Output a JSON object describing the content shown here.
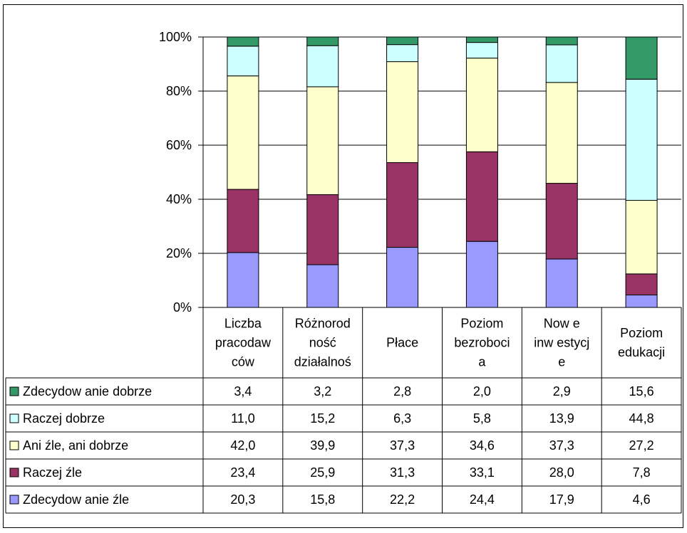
{
  "chart_data": {
    "type": "bar",
    "stacked": true,
    "percent_stacked": true,
    "categories": [
      [
        "Liczba",
        "pracodaw",
        "ców"
      ],
      [
        "Różnorod",
        "ność",
        "działalnoś"
      ],
      [
        "Płace"
      ],
      [
        "Poziom",
        "bezroboci",
        "a"
      ],
      [
        "Now e",
        "inw estycj",
        "e"
      ],
      [
        "Poziom",
        "edukacji"
      ]
    ],
    "series": [
      {
        "name": "Zdecydow anie źle",
        "color": "#9999FF",
        "values": [
          20.3,
          15.8,
          22.2,
          24.4,
          17.9,
          4.6
        ],
        "labels": [
          "20,3",
          "15,8",
          "22,2",
          "24,4",
          "17,9",
          "4,6"
        ]
      },
      {
        "name": "Raczej źle",
        "color": "#993366",
        "values": [
          23.4,
          25.9,
          31.3,
          33.1,
          28.0,
          7.8
        ],
        "labels": [
          "23,4",
          "25,9",
          "31,3",
          "33,1",
          "28,0",
          "7,8"
        ]
      },
      {
        "name": "Ani źle, ani dobrze",
        "color": "#FFFFCC",
        "values": [
          42.0,
          39.9,
          37.3,
          34.6,
          37.3,
          27.2
        ],
        "labels": [
          "42,0",
          "39,9",
          "37,3",
          "34,6",
          "37,3",
          "27,2"
        ]
      },
      {
        "name": "Raczej dobrze",
        "color": "#CCFFFF",
        "values": [
          11.0,
          15.2,
          6.3,
          5.8,
          13.9,
          44.8
        ],
        "labels": [
          "11,0",
          "15,2",
          "6,3",
          "5,8",
          "13,9",
          "44,8"
        ]
      },
      {
        "name": "Zdecydow anie dobrze",
        "color": "#339966",
        "values": [
          3.4,
          3.2,
          2.8,
          2.0,
          2.9,
          15.6
        ],
        "labels": [
          "3,4",
          "3,2",
          "2,8",
          "2,0",
          "2,9",
          "15,6"
        ]
      }
    ],
    "yticks": [
      "0%",
      "20%",
      "40%",
      "60%",
      "80%",
      "100%"
    ],
    "ylim": [
      0,
      100
    ],
    "grid": true,
    "legend": "data-table-left",
    "title": "",
    "xlabel": "",
    "ylabel": ""
  }
}
